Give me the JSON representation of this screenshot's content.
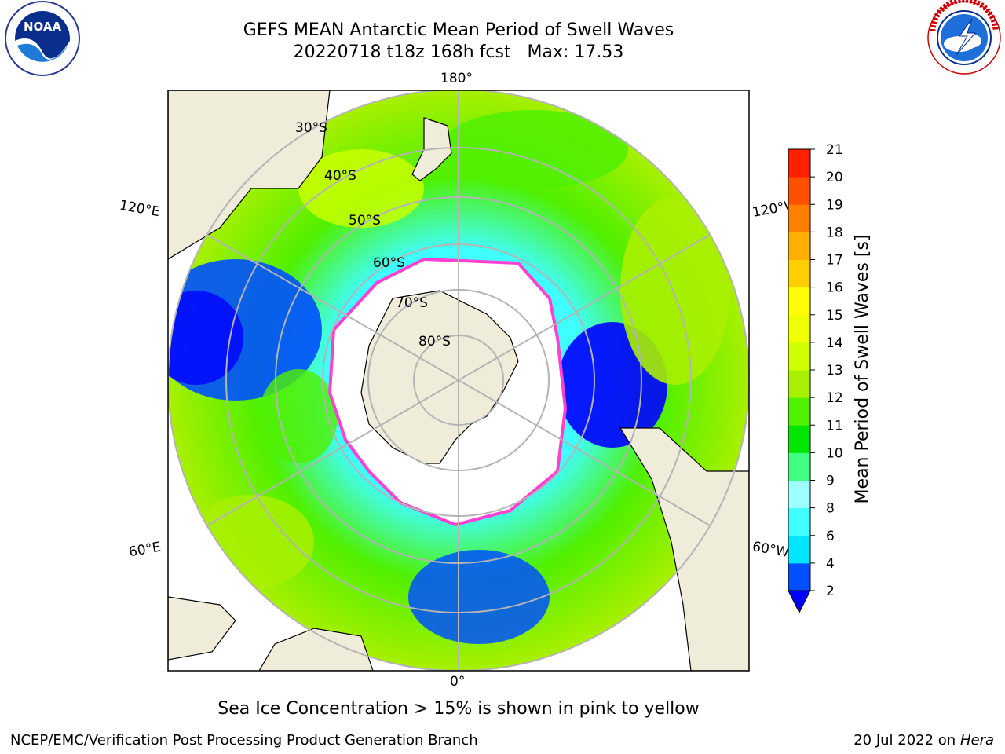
{
  "header": {
    "title_line1": "GEFS MEAN Antarctic Mean Period of Swell Waves",
    "title_line2": "20220718 t18z 168h fcst   Max: 17.53"
  },
  "logos": {
    "noaa_text": "NOAA",
    "nws_icon": "national-weather-service-logo"
  },
  "map": {
    "longitude_labels": {
      "top": "180°",
      "bottom": "0°",
      "upper_left": "120°E",
      "upper_right": "120°W",
      "lower_left": "60°E",
      "lower_right": "60°W"
    },
    "latitude_labels": [
      "30°S",
      "40°S",
      "50°S",
      "60°S",
      "70°S",
      "80°S"
    ]
  },
  "colorbar": {
    "label": "Mean Period of Swell Waves [s]",
    "ticks": [
      "2",
      "4",
      "6",
      "8",
      "9",
      "10",
      "11",
      "12",
      "13",
      "14",
      "15",
      "16",
      "17",
      "18",
      "19",
      "20",
      "21"
    ],
    "colors": [
      "#0050ff",
      "#00e6ff",
      "#40ffff",
      "#9dffff",
      "#40ff80",
      "#00e600",
      "#50f000",
      "#a8f000",
      "#d0ff00",
      "#f0ff00",
      "#ffff00",
      "#ffd000",
      "#ffb000",
      "#ff8000",
      "#ff5000",
      "#ff2000"
    ],
    "extend_color": "#0000ff"
  },
  "chart_data": {
    "type": "heatmap",
    "title": "GEFS MEAN Antarctic Mean Period of Swell Waves",
    "subtitle": "20220718 t18z 168h fcst   Max: 17.53",
    "max_value": 17.53,
    "colorbar_label": "Mean Period of Swell Waves [s]",
    "colorbar_range": [
      2,
      21
    ]
  },
  "caption": "Sea Ice Concentration > 15% is shown in pink to yellow",
  "footer": {
    "left": "NCEP/EMC/Verification Post Processing Product Generation Branch",
    "right_prefix": "20 Jul 2022 on ",
    "right_machine": "Hera"
  }
}
